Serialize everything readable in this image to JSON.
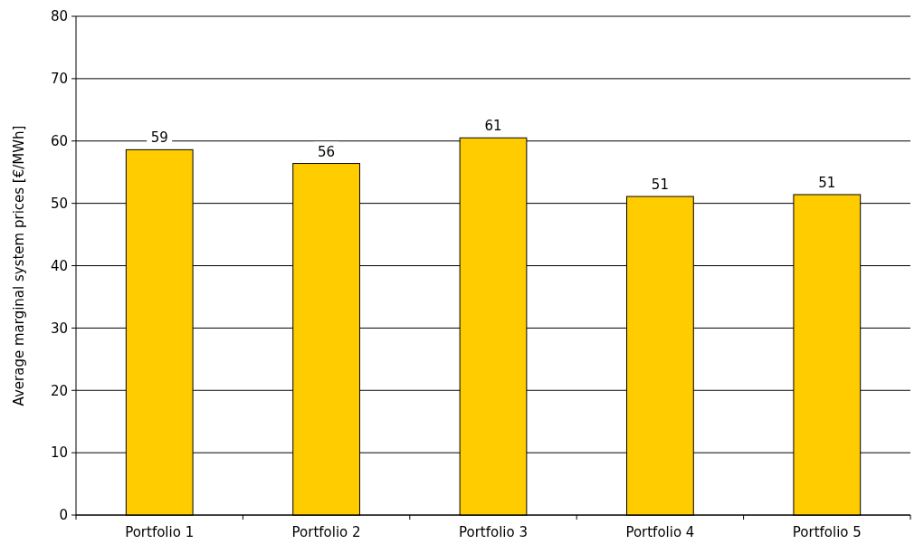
{
  "chart_data": {
    "type": "bar",
    "ylabel": "Average marginal system prices [€/MWh]",
    "categories": [
      "Portfolio 1",
      "Portfolio 2",
      "Portfolio 3",
      "Portfolio 4",
      "Portfolio 5"
    ],
    "values": [
      58.6,
      56.4,
      60.5,
      51.1,
      51.4
    ],
    "value_labels": [
      "59",
      "56",
      "61",
      "51",
      "51"
    ],
    "color": "#ffcc00",
    "ylim": [
      0,
      80
    ],
    "yticks": [
      0,
      10,
      20,
      30,
      40,
      50,
      60,
      70,
      80
    ],
    "grid": "y"
  }
}
